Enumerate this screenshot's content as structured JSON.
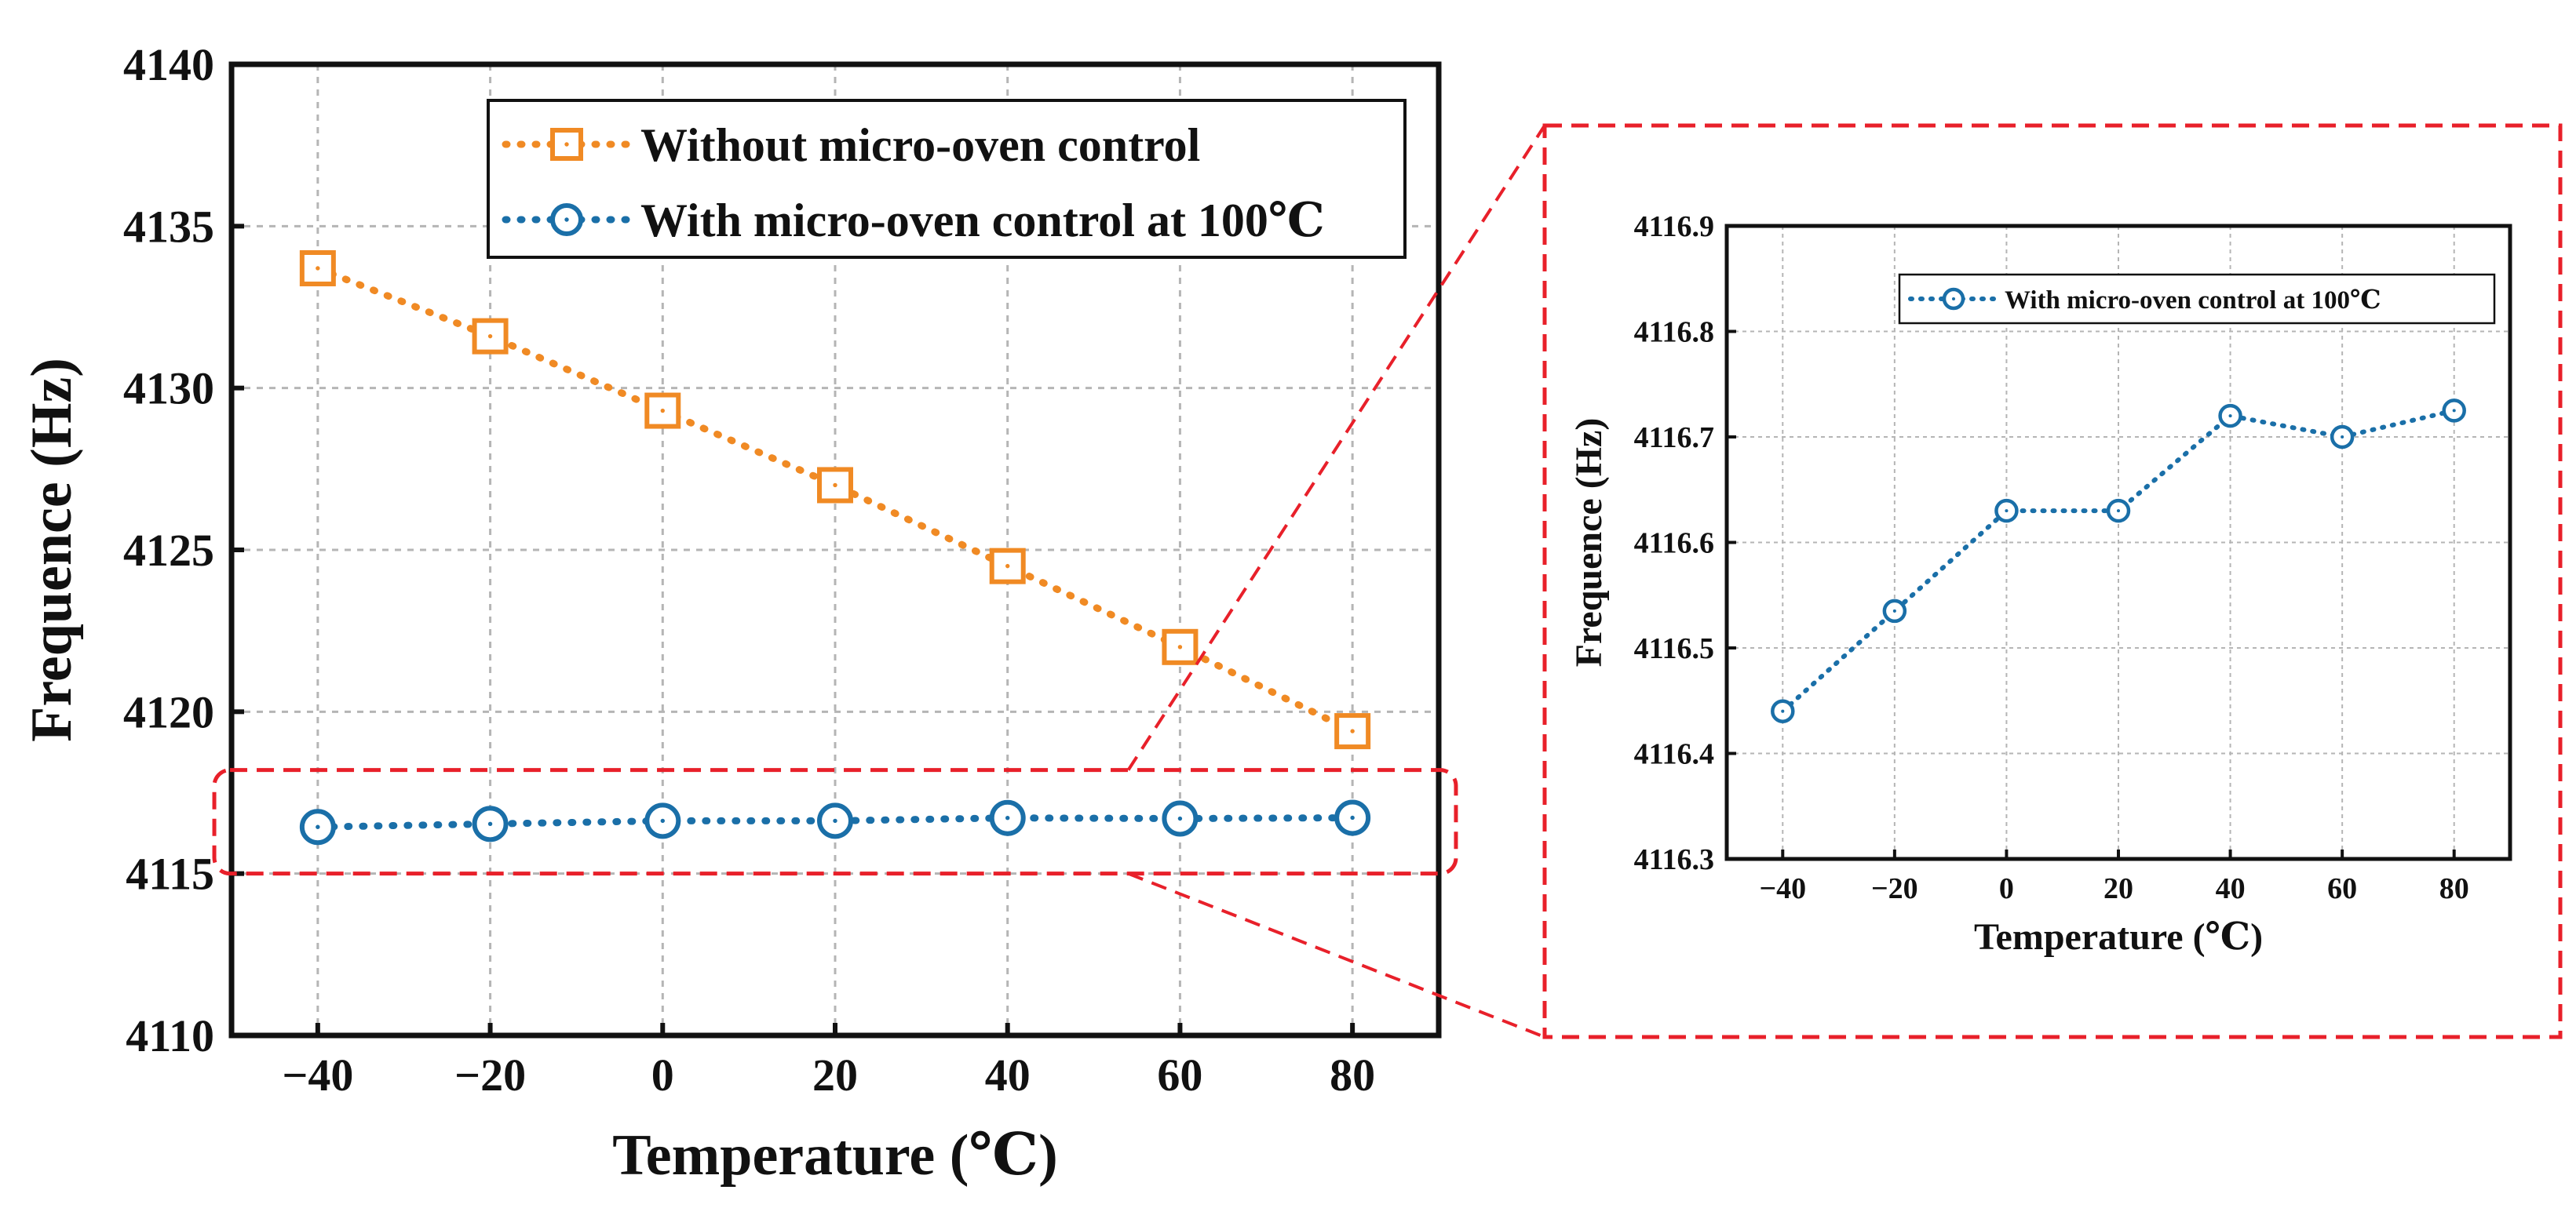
{
  "chart_data": [
    {
      "type": "line",
      "title": "",
      "xlabel": "Temperature (℃)",
      "ylabel": "Frequence (Hz)",
      "xlim": [
        -50,
        90
      ],
      "ylim": [
        4110,
        4140
      ],
      "xticks": [
        -40,
        -20,
        0,
        20,
        40,
        60,
        80
      ],
      "yticks": [
        4110,
        4115,
        4120,
        4125,
        4130,
        4135,
        4140
      ],
      "xtick_labels": [
        "−40",
        "−20",
        "0",
        "20",
        "40",
        "60",
        "80"
      ],
      "ytick_labels": [
        "4110",
        "4115",
        "4120",
        "4125",
        "4130",
        "4135",
        "4140"
      ],
      "grid": true,
      "legend_position": "top-right",
      "x": [
        -40,
        -20,
        0,
        20,
        40,
        60,
        80
      ],
      "series": [
        {
          "name": "Without micro-oven control",
          "color": "#f08a24",
          "marker": "square",
          "values": [
            4133.7,
            4131.6,
            4129.3,
            4127.0,
            4124.5,
            4122.0,
            4119.4
          ]
        },
        {
          "name": "With micro-oven control at 100℃",
          "color": "#1a6fa8",
          "marker": "circle",
          "values": [
            4116.44,
            4116.535,
            4116.63,
            4116.63,
            4116.72,
            4116.7,
            4116.725
          ]
        }
      ],
      "annotation": "dashed red box highlighting the micro-oven series, magnified in the inset"
    },
    {
      "type": "line",
      "title": "",
      "xlabel": "Temperature (℃)",
      "ylabel": "Frequence (Hz)",
      "xlim": [
        -50,
        90
      ],
      "ylim": [
        4116.3,
        4116.9
      ],
      "xticks": [
        -40,
        -20,
        0,
        20,
        40,
        60,
        80
      ],
      "yticks": [
        4116.3,
        4116.4,
        4116.5,
        4116.6,
        4116.7,
        4116.8,
        4116.9
      ],
      "xtick_labels": [
        "−40",
        "−20",
        "0",
        "20",
        "40",
        "60",
        "80"
      ],
      "ytick_labels": [
        "4116.3",
        "4116.4",
        "4116.5",
        "4116.6",
        "4116.7",
        "4116.8",
        "4116.9"
      ],
      "grid": true,
      "legend_position": "top-right",
      "x": [
        -40,
        -20,
        0,
        20,
        40,
        60,
        80
      ],
      "series": [
        {
          "name": "With micro-oven control at 100℃",
          "color": "#1a6fa8",
          "marker": "circle",
          "values": [
            4116.44,
            4116.535,
            4116.63,
            4116.63,
            4116.72,
            4116.7,
            4116.725
          ]
        }
      ]
    }
  ],
  "colors": {
    "highlight": "#e8202a",
    "axis": "#111111",
    "grid": "#b5b5b5"
  }
}
